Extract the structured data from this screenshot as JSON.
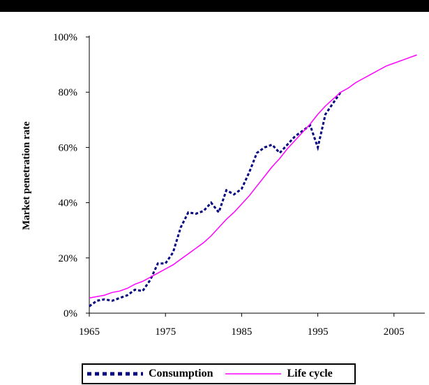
{
  "chart_data": {
    "type": "line",
    "title": "",
    "xlabel": "",
    "ylabel": "Market penetration rate",
    "xlim": [
      1965,
      2008.5
    ],
    "ylim": [
      0,
      100
    ],
    "x_ticks": [
      1965,
      1975,
      1985,
      1995,
      2005
    ],
    "x_tick_labels": [
      "1965",
      "1975",
      "1985",
      "1995",
      "2005"
    ],
    "y_ticks": [
      0,
      20,
      40,
      60,
      80,
      100
    ],
    "y_tick_labels": [
      "0%",
      "20%",
      "40%",
      "60%",
      "80%",
      "100%"
    ],
    "grid": false,
    "legend_position": "bottom",
    "series": [
      {
        "name": "Consumption",
        "color": "#000080",
        "style": "dashed",
        "x": [
          1965,
          1966,
          1967,
          1968,
          1969,
          1970,
          1971,
          1972,
          1973,
          1974,
          1975,
          1976,
          1977,
          1978,
          1979,
          1980,
          1981,
          1982,
          1983,
          1984,
          1985,
          1986,
          1987,
          1988,
          1989,
          1990,
          1991,
          1992,
          1993,
          1994,
          1995,
          1996,
          1997,
          1998
        ],
        "y": [
          2.5,
          4.5,
          5,
          4.5,
          5.5,
          6.5,
          8.5,
          8,
          12,
          18,
          18,
          22,
          31,
          36.5,
          36,
          37,
          40,
          36.5,
          44.5,
          43,
          45,
          51,
          58,
          60,
          61,
          58,
          61,
          64,
          66,
          68,
          60,
          72,
          76,
          80
        ]
      },
      {
        "name": "Life cycle",
        "color": "#ff00ff",
        "style": "solid",
        "x": [
          1965,
          1966,
          1967,
          1968,
          1969,
          1970,
          1971,
          1972,
          1973,
          1974,
          1975,
          1976,
          1977,
          1978,
          1979,
          1980,
          1981,
          1982,
          1983,
          1984,
          1985,
          1986,
          1987,
          1988,
          1989,
          1990,
          1991,
          1992,
          1993,
          1994,
          1995,
          1996,
          1997,
          1998,
          1999,
          2000,
          2001,
          2002,
          2003,
          2004,
          2005,
          2006,
          2007,
          2008
        ],
        "y": [
          5.5,
          6,
          6.5,
          7.5,
          8,
          9,
          10.5,
          11.5,
          13,
          14.5,
          16,
          17.5,
          19.5,
          21.5,
          23.5,
          25.5,
          28,
          31,
          34,
          36.5,
          39.5,
          42.5,
          46,
          49.5,
          53,
          56,
          59.5,
          62.5,
          65.5,
          68.5,
          72,
          75,
          77.5,
          80,
          81.5,
          83.5,
          85,
          86.5,
          88,
          89.5,
          90.5,
          91.5,
          92.5,
          93.5
        ]
      }
    ]
  }
}
